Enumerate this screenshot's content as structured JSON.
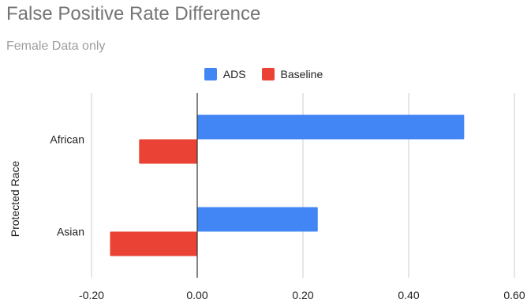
{
  "chart_data": {
    "type": "bar",
    "orientation": "horizontal",
    "title": "False Positive Rate Difference",
    "subtitle": "Female Data only",
    "xlabel": "",
    "ylabel": "Protected Race",
    "categories": [
      "African",
      "Asian"
    ],
    "series": [
      {
        "name": "ADS",
        "color": "#4285f4",
        "values": [
          0.505,
          0.228
        ]
      },
      {
        "name": "Baseline",
        "color": "#ea4335",
        "values": [
          -0.11,
          -0.165
        ]
      }
    ],
    "xlim": [
      -0.2,
      0.6
    ],
    "xticks": [
      "-0.20",
      "0.00",
      "0.20",
      "0.40",
      "0.60"
    ],
    "grid": true,
    "legend_position": "top"
  }
}
